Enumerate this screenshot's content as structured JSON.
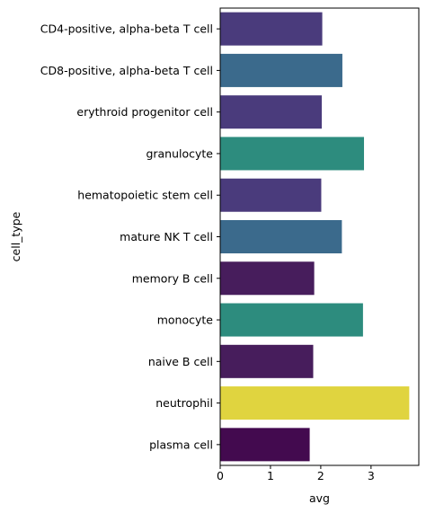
{
  "chart_data": {
    "type": "bar",
    "orientation": "horizontal",
    "categories": [
      "CD4-positive, alpha-beta T cell",
      "CD8-positive, alpha-beta T cell",
      "erythroid progenitor cell",
      "granulocyte",
      "hematopoietic stem cell",
      "mature NK T cell",
      "memory B cell",
      "monocyte",
      "naive B cell",
      "neutrophil",
      "plasma cell"
    ],
    "values": [
      2.03,
      2.43,
      2.02,
      2.86,
      2.01,
      2.42,
      1.87,
      2.84,
      1.85,
      3.76,
      1.78
    ],
    "colors": [
      "#4a3b7c",
      "#3b6a8c",
      "#4a3b7c",
      "#2d8c7e",
      "#4a3b7c",
      "#3b6a8c",
      "#471d5c",
      "#2d8c7e",
      "#471d5c",
      "#e0d43f",
      "#430a4f"
    ],
    "xlabel": "avg",
    "ylabel": "cell_type",
    "xlim": [
      0,
      3.95
    ],
    "xticks": [
      0,
      1,
      2,
      3
    ],
    "grid": false,
    "legend": "none"
  }
}
